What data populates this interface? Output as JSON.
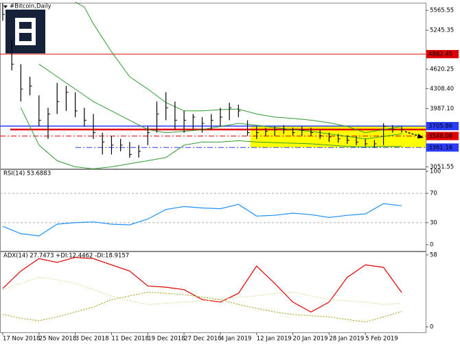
{
  "chart_data": [
    {
      "type": "ohlc",
      "title": "#Bitcoin,Daily",
      "x": [
        0,
        2,
        4,
        6,
        8,
        10,
        12,
        14,
        16,
        18,
        20,
        22,
        24,
        26,
        28,
        30,
        32,
        34,
        36,
        38,
        40,
        42,
        44,
        46,
        48,
        50,
        52,
        54,
        56,
        58,
        60,
        62,
        64,
        66,
        68,
        70,
        72,
        74,
        76,
        78,
        80,
        82,
        84,
        86,
        88
      ],
      "high": [
        5680,
        5100,
        4700,
        4500,
        4200,
        4000,
        4400,
        4350,
        4250,
        4000,
        3900,
        3600,
        3550,
        3500,
        3450,
        3400,
        3700,
        4100,
        4250,
        4100,
        3950,
        3900,
        3850,
        3900,
        4000,
        4080,
        4050,
        3800,
        3700,
        3680,
        3700,
        3720,
        3680,
        3700,
        3680,
        3650,
        3600,
        3580,
        3560,
        3540,
        3500,
        3480,
        3750,
        3720,
        3700
      ],
      "low": [
        5400,
        4600,
        4100,
        4200,
        3700,
        3500,
        3900,
        3950,
        3850,
        3700,
        3500,
        3250,
        3250,
        3300,
        3200,
        3200,
        3400,
        3600,
        3800,
        3650,
        3600,
        3650,
        3600,
        3650,
        3700,
        3800,
        3850,
        3550,
        3500,
        3550,
        3550,
        3580,
        3550,
        3550,
        3550,
        3500,
        3450,
        3440,
        3420,
        3400,
        3380,
        3360,
        3400,
        3600,
        3600
      ],
      "close": [
        5500,
        4700,
        4300,
        4350,
        3800,
        3900,
        4100,
        4250,
        3950,
        3800,
        3600,
        3450,
        3400,
        3400,
        3250,
        3300,
        3600,
        3900,
        4000,
        3800,
        3800,
        3850,
        3750,
        3800,
        3850,
        4000,
        3950,
        3600,
        3600,
        3620,
        3650,
        3650,
        3600,
        3640,
        3600,
        3550,
        3530,
        3500,
        3480,
        3450,
        3420,
        3420,
        3700,
        3650,
        3650
      ],
      "bar_color": "#000000",
      "series": [
        {
          "name": "upper",
          "color": "#2e9b2e",
          "x": [
            16,
            18,
            20,
            24,
            28,
            32,
            36,
            40,
            44,
            48,
            52,
            56,
            60,
            64,
            68,
            72,
            76,
            80,
            84,
            88
          ],
          "values": [
            5700,
            5620,
            5350,
            4900,
            4500,
            4300,
            4085,
            3950,
            3950,
            3970,
            3980,
            3900,
            3850,
            3830,
            3800,
            3760,
            3700,
            3600,
            3650,
            3700
          ]
        },
        {
          "name": "middle",
          "color": "#2e9b2e",
          "x": [
            8,
            12,
            16,
            20,
            24,
            28,
            32,
            36,
            40,
            44,
            48,
            52,
            56,
            60,
            64,
            68,
            72,
            76,
            80,
            84,
            88
          ],
          "values": [
            4700,
            4500,
            4300,
            4100,
            3950,
            3800,
            3650,
            3600,
            3620,
            3650,
            3700,
            3750,
            3720,
            3680,
            3650,
            3620,
            3580,
            3540,
            3500,
            3540,
            3580
          ]
        },
        {
          "name": "lower",
          "color": "#2e9b2e",
          "x": [
            4,
            8,
            12,
            16,
            20,
            24,
            28,
            32,
            36,
            40,
            44,
            48,
            52,
            56,
            60,
            64,
            68,
            72,
            76,
            80,
            84,
            88
          ],
          "values": [
            4000,
            3400,
            3150,
            3050,
            3020,
            3050,
            3100,
            3150,
            3200,
            3400,
            3450,
            3450,
            3470,
            3450,
            3440,
            3430,
            3420,
            3400,
            3380,
            3370,
            3380,
            3380
          ]
        }
      ],
      "levels": [
        {
          "value": 4862.45,
          "color": "#e00000"
        },
        {
          "value": 3705.86,
          "color": "#2a3cff"
        },
        {
          "value": 3546.08,
          "color": "#e00000"
        },
        {
          "value": 3361.16,
          "color": "#2a3cff"
        }
      ],
      "ylim": [
        3023,
        5677
      ],
      "yticks": [
        5565.55,
        5245.35,
        4620.25,
        {
          "value": 4308.4,
          "label": "4308.40"
        },
        {
          "value": 3987.1,
          "label": "3987.10"
        },
        3051.55
      ]
    },
    {
      "type": "line",
      "title": "RSI(14) 53.6883",
      "x": [
        0,
        4,
        8,
        12,
        16,
        20,
        24,
        28,
        32,
        36,
        40,
        44,
        48,
        52,
        56,
        60,
        64,
        68,
        72,
        76,
        80,
        84,
        88
      ],
      "series": [
        {
          "name": "RSI",
          "color": "#1e90ff",
          "values": [
            25,
            15,
            12,
            28,
            30,
            31,
            28,
            27,
            35,
            48,
            52,
            50,
            49,
            55,
            39,
            40,
            43,
            41,
            37,
            40,
            42,
            56,
            53
          ]
        }
      ],
      "ylim": [
        -8.4,
        101.9
      ],
      "yticks": [
        100,
        70,
        30,
        0
      ],
      "grid_ticks": [
        70,
        30
      ]
    },
    {
      "type": "line",
      "title": "ADX(14) 27.7473 +DI:12.4462 -DI:18.9157",
      "x": [
        0,
        4,
        8,
        12,
        16,
        20,
        24,
        28,
        32,
        36,
        40,
        44,
        48,
        52,
        56,
        60,
        64,
        68,
        72,
        76,
        80,
        84,
        88
      ],
      "series": [
        {
          "name": "ADX",
          "color": "#e00000",
          "values": [
            31,
            45,
            55,
            52,
            56,
            55,
            50,
            45,
            33,
            32,
            30,
            22,
            20,
            27,
            49,
            35,
            20,
            12,
            20,
            40,
            50,
            48,
            27.7
          ]
        },
        {
          "name": "+DI",
          "color": "#9a9a00",
          "dashed": true,
          "values": [
            10,
            7,
            5,
            8,
            12,
            16,
            22,
            25,
            28,
            27,
            26,
            24,
            22,
            18,
            15,
            12,
            10,
            9,
            8,
            6,
            4,
            8,
            12.4
          ]
        },
        {
          "name": "-DI",
          "color": "#d8d88a",
          "dashed": true,
          "values": [
            30,
            35,
            40,
            38,
            35,
            30,
            25,
            21,
            18,
            19,
            20,
            21,
            22,
            24,
            25,
            27,
            28,
            25,
            22,
            21,
            20,
            18,
            18.9
          ]
        }
      ],
      "ylim": [
        -4.4,
        60.2
      ],
      "yticks": [
        58,
        0
      ],
      "xlim": [
        -0.6,
        93.3
      ],
      "xticks": [
        {
          "value": 0,
          "label": "17 Nov 2018"
        },
        {
          "value": 8,
          "label": "25 Nov 2018"
        },
        {
          "value": 16,
          "label": "3 Dec 2018"
        },
        {
          "value": 24,
          "label": "11 Dec 2018"
        },
        {
          "value": 32,
          "label": "19 Dec 2018"
        },
        {
          "value": 40,
          "label": "27 Dec 2018"
        },
        {
          "value": 48,
          "label": "4 Jan 2019"
        },
        {
          "value": 56,
          "label": "12 Jan 2019"
        },
        {
          "value": 64,
          "label": "20 Jan 2019"
        },
        {
          "value": 72,
          "label": "28 Jan 2019"
        },
        {
          "value": 80,
          "label": "5 Feb 2019"
        }
      ]
    }
  ]
}
